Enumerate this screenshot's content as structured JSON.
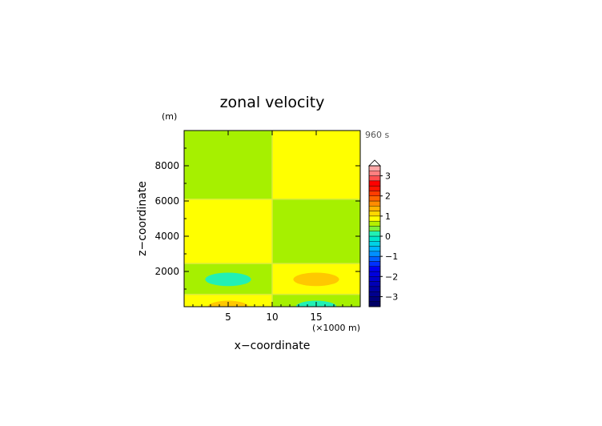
{
  "chart_data": {
    "type": "heatmap",
    "title": "zonal velocity",
    "xlabel": "x−coordinate",
    "ylabel": "z−coordinate",
    "x_unit": "(×1000 m)",
    "y_unit": "(m)",
    "time_label": "960 s",
    "xlim": [
      0,
      20
    ],
    "ylim": [
      0,
      10000
    ],
    "x_ticks": [
      "5",
      "10",
      "15"
    ],
    "x_tick_values": [
      5,
      10,
      15
    ],
    "y_ticks": [
      "2000",
      "4000",
      "6000",
      "8000"
    ],
    "y_tick_values": [
      2000,
      4000,
      6000,
      8000
    ],
    "colorbar": {
      "min": -3.5,
      "max": 3.5,
      "step": 0.25,
      "tick_labels": [
        "3",
        "2",
        "1",
        "0",
        "−1",
        "−2",
        "−3"
      ],
      "tick_values": [
        3,
        2,
        1,
        0,
        -1,
        -2,
        -3
      ],
      "extend": "max",
      "colors": [
        "#000066",
        "#00007a",
        "#00008e",
        "#0000a2",
        "#0000b6",
        "#0000ca",
        "#0000dd",
        "#0000f0",
        "#0030ff",
        "#0060ff",
        "#0090ff",
        "#00b4ff",
        "#00d2e6",
        "#00e6cc",
        "#22f0b4",
        "#7cf03c",
        "#b4f000",
        "#ffff00",
        "#ffd700",
        "#ffb400",
        "#ff8c00",
        "#ff6400",
        "#ff3c00",
        "#ff1400",
        "#ff0000",
        "#ff5050",
        "#ff8080",
        "#ffa8a8"
      ]
    },
    "regions": [
      {
        "x": [
          0,
          10
        ],
        "z": [
          6100,
          10000
        ],
        "value": 0.1,
        "color": "#a6f000"
      },
      {
        "x": [
          10,
          20
        ],
        "z": [
          6100,
          10000
        ],
        "value": 0.3,
        "color": "#ffff00"
      },
      {
        "x": [
          0,
          10
        ],
        "z": [
          2450,
          6100
        ],
        "value": 0.3,
        "color": "#ffff00"
      },
      {
        "x": [
          10,
          20
        ],
        "z": [
          2450,
          6100
        ],
        "value": 0.1,
        "color": "#a6f000"
      },
      {
        "x": [
          0,
          10
        ],
        "z": [
          700,
          2450
        ],
        "value": 0.1,
        "color": "#a6f000"
      },
      {
        "x": [
          10,
          20
        ],
        "z": [
          700,
          2450
        ],
        "value": 0.3,
        "color": "#ffff00"
      },
      {
        "x": [
          0,
          10
        ],
        "z": [
          0,
          700
        ],
        "value": 0.3,
        "color": "#ffff00"
      },
      {
        "x": [
          10,
          20
        ],
        "z": [
          0,
          700
        ],
        "value": 0.1,
        "color": "#a6f000"
      }
    ],
    "cells": [
      {
        "x": 5,
        "z": 1550,
        "rx": 2.6,
        "rz": 380,
        "value": -0.6,
        "color": "#22f0b4"
      },
      {
        "x": 15,
        "z": 1550,
        "rx": 2.6,
        "rz": 380,
        "value": 0.6,
        "color": "#ffc800"
      },
      {
        "x": 5,
        "z": 0,
        "rx": 2.3,
        "rz": 340,
        "value": 0.6,
        "color": "#ffc800"
      },
      {
        "x": 15,
        "z": 0,
        "rx": 2.3,
        "rz": 340,
        "value": -0.6,
        "color": "#22f0b4"
      }
    ]
  }
}
